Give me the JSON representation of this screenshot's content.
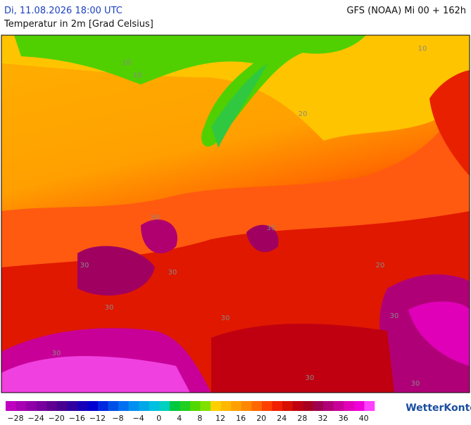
{
  "header": {
    "datetime": "Di, 11.08.2026 18:00 UTC",
    "subtitle": "Temperatur in 2m [Grad Celsius]",
    "model": "GFS (NOAA) Mi 00 + 162h"
  },
  "map": {
    "contour_labels": [
      "10",
      "10",
      "10",
      "20",
      "20",
      "30",
      "30",
      "30",
      "30",
      "30",
      "30",
      "30",
      "30",
      "30",
      "30"
    ]
  },
  "colorbar": {
    "colors": [
      "#c000c0",
      "#a800b4",
      "#9000a8",
      "#78009c",
      "#600090",
      "#480090",
      "#3000a0",
      "#1800b8",
      "#0000d0",
      "#0028e0",
      "#0050e8",
      "#0070f0",
      "#0090f0",
      "#00a8e8",
      "#00c0e0",
      "#00d0c0",
      "#00c840",
      "#20d020",
      "#50d800",
      "#80e000",
      "#ffd000",
      "#ffb800",
      "#ffa000",
      "#ff8800",
      "#ff6800",
      "#ff4000",
      "#f02000",
      "#d81000",
      "#c00010",
      "#a80020",
      "#a00050",
      "#b00078",
      "#c80098",
      "#e000b8",
      "#f000d8",
      "#ff40ff"
    ],
    "labels": [
      "−28",
      "−24",
      "−20",
      "−16",
      "−12",
      "−8",
      "−4",
      "0",
      "4",
      "8",
      "12",
      "16",
      "20",
      "24",
      "28",
      "32",
      "36",
      "40"
    ]
  },
  "brand": "WetterKontor"
}
